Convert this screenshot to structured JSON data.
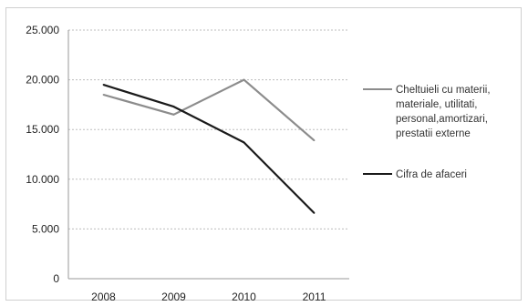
{
  "chart_data": {
    "type": "line",
    "title": "",
    "xlabel": "",
    "ylabel": "",
    "categories": [
      "2008",
      "2009",
      "2010",
      "2011"
    ],
    "ylim": [
      0,
      25000
    ],
    "yticks": [
      0,
      5000,
      10000,
      15000,
      20000,
      25000
    ],
    "ytick_labels": [
      "0",
      "5.000",
      "10.000",
      "15.000",
      "20.000",
      "25.000"
    ],
    "grid": true,
    "legend_position": "right",
    "series": [
      {
        "name": "Cheltuieli cu materii, materiale, utilitati, personal,amortizari, prestatii externe",
        "legend_lines": [
          "Cheltuieli cu materii,",
          "materiale, utilitati,",
          "personal,amortizari,",
          "prestatii externe"
        ],
        "values": [
          18500,
          16500,
          20000,
          13900
        ],
        "color": "#8c8c8c"
      },
      {
        "name": "Cifra de afaceri",
        "legend_lines": [
          "Cifra de afaceri"
        ],
        "values": [
          19500,
          17300,
          13700,
          6600
        ],
        "color": "#1a1a1a"
      }
    ]
  }
}
